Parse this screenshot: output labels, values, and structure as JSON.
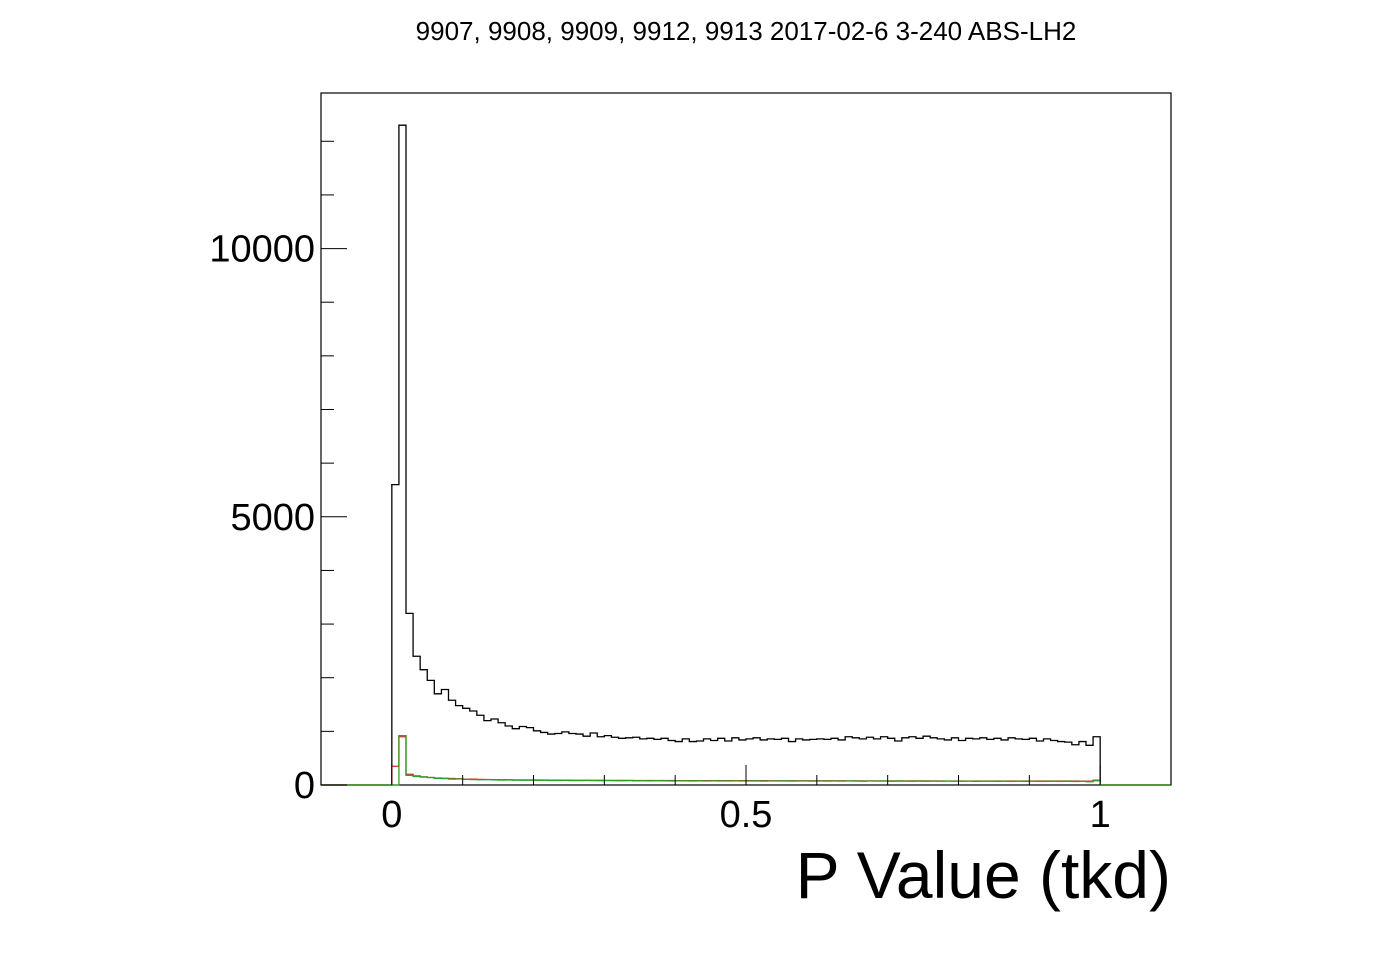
{
  "chart_data": {
    "type": "histogram",
    "title": "9907, 9908, 9909, 9912, 9913 2017-02-6 3-240 ABS-LH2",
    "xlabel": "P Value (tkd)",
    "ylabel": "",
    "xlim": [
      -0.1,
      1.1
    ],
    "ylim": [
      0,
      12900
    ],
    "bin_width": 0.01,
    "x_start": 0.0,
    "grid": false,
    "legend": "none",
    "x_ticks": [
      {
        "value": 0,
        "label": "0"
      },
      {
        "value": 0.5,
        "label": "0.5"
      },
      {
        "value": 1,
        "label": "1"
      }
    ],
    "y_ticks": [
      {
        "value": 0,
        "label": "0"
      },
      {
        "value": 5000,
        "label": "5000"
      },
      {
        "value": 10000,
        "label": "10000"
      }
    ],
    "series": [
      {
        "color": "#000000",
        "values": [
          5600,
          12300,
          3200,
          2400,
          2150,
          1950,
          1700,
          1780,
          1580,
          1480,
          1430,
          1380,
          1300,
          1200,
          1230,
          1160,
          1100,
          1050,
          1090,
          1070,
          1010,
          980,
          950,
          960,
          990,
          960,
          950,
          910,
          970,
          900,
          920,
          890,
          870,
          880,
          890,
          860,
          870,
          850,
          870,
          830,
          810,
          860,
          810,
          820,
          860,
          830,
          870,
          820,
          880,
          840,
          860,
          880,
          840,
          860,
          850,
          870,
          810,
          860,
          840,
          850,
          860,
          850,
          870,
          840,
          900,
          880,
          860,
          890,
          860,
          900,
          870,
          820,
          880,
          900,
          870,
          910,
          880,
          860,
          840,
          880,
          830,
          870,
          860,
          880,
          850,
          870,
          840,
          880,
          860,
          850,
          870,
          820,
          860,
          830,
          810,
          800,
          750,
          810,
          740,
          900
        ]
      },
      {
        "color": "#d62728",
        "values": [
          350,
          900,
          200,
          170,
          150,
          140,
          130,
          125,
          120,
          115,
          110,
          108,
          105,
          103,
          100,
          98,
          97,
          96,
          95,
          94,
          93,
          92,
          91,
          90,
          90,
          89,
          88,
          88,
          87,
          87,
          86,
          86,
          85,
          85,
          84,
          84,
          84,
          83,
          83,
          83,
          82,
          82,
          82,
          82,
          81,
          81,
          81,
          81,
          80,
          80,
          80,
          80,
          80,
          79,
          79,
          79,
          79,
          79,
          78,
          78,
          78,
          78,
          78,
          78,
          77,
          77,
          77,
          77,
          77,
          77,
          76,
          76,
          76,
          76,
          76,
          76,
          76,
          75,
          75,
          75,
          75,
          75,
          75,
          75,
          74,
          74,
          74,
          74,
          74,
          74,
          74,
          74,
          73,
          73,
          73,
          73,
          73,
          72,
          72,
          80
        ]
      },
      {
        "color": "#2ca02c",
        "values": [
          0,
          920,
          180,
          160,
          150,
          140,
          125,
          120,
          110,
          112,
          105,
          100,
          98,
          100,
          95,
          92,
          94,
          90,
          88,
          90,
          86,
          88,
          85,
          84,
          86,
          83,
          82,
          84,
          81,
          80,
          82,
          80,
          79,
          81,
          78,
          79,
          77,
          80,
          78,
          76,
          78,
          77,
          76,
          78,
          75,
          77,
          76,
          74,
          77,
          75,
          74,
          76,
          73,
          75,
          74,
          76,
          73,
          74,
          75,
          72,
          74,
          73,
          75,
          72,
          74,
          73,
          71,
          74,
          72,
          73,
          71,
          73,
          72,
          70,
          73,
          71,
          72,
          70,
          72,
          71,
          70,
          72,
          69,
          71,
          70,
          69,
          71,
          68,
          70,
          69,
          70,
          68,
          69,
          70,
          67,
          69,
          66,
          68,
          60,
          90
        ]
      }
    ]
  }
}
